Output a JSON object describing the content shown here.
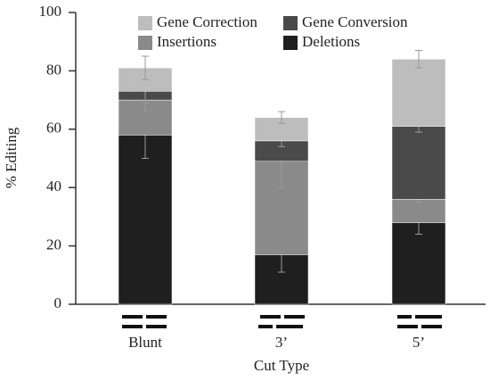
{
  "chart_data": {
    "type": "stacked_bar",
    "x_label": "Cut Type",
    "y_label": "% Editing",
    "categories": [
      "Blunt",
      "3’",
      "5’"
    ],
    "series": [
      {
        "name": "Deletions",
        "color": "#1f1f1f",
        "values": [
          58,
          17,
          28
        ],
        "errors": [
          8,
          6,
          4
        ]
      },
      {
        "name": "Insertions",
        "color": "#8a8a8a",
        "values": [
          12,
          32,
          8
        ],
        "errors": [
          4,
          9,
          1
        ]
      },
      {
        "name": "Gene Conversion",
        "color": "#4a4a4a",
        "values": [
          3,
          7,
          25
        ],
        "errors": [
          4,
          2,
          2
        ]
      },
      {
        "name": "Gene Correction",
        "color": "#bdbdbd",
        "values": [
          8,
          8,
          23
        ],
        "errors": [
          4,
          2,
          3
        ]
      }
    ],
    "ylim": [
      0,
      100
    ],
    "yticks": [
      0,
      20,
      40,
      60,
      80,
      100
    ]
  }
}
